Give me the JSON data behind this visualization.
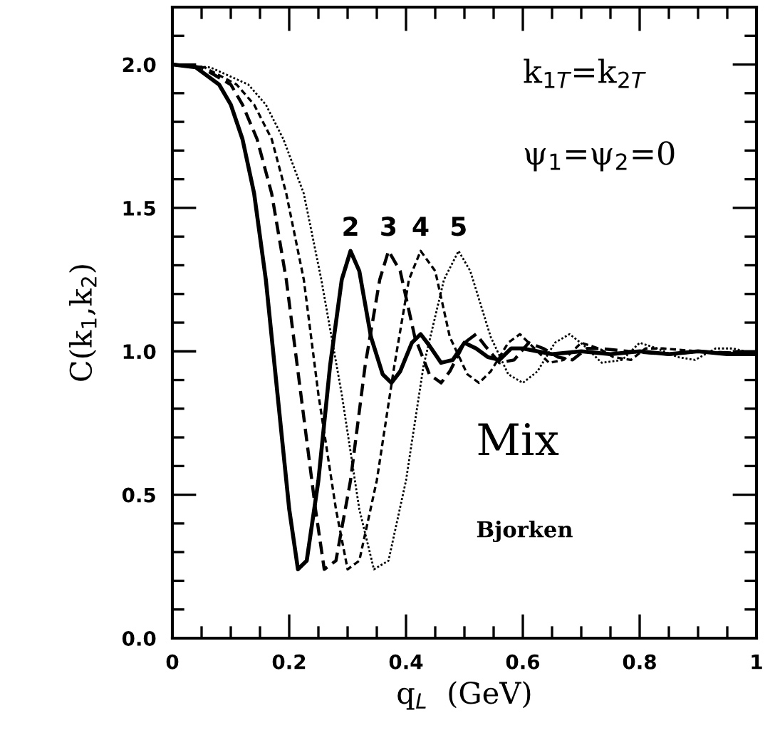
{
  "chart_data": {
    "type": "line",
    "xlabel": "q$_{L}$  (GeV)",
    "ylabel": "C(k$_{1}$,k$_{2}$)",
    "xlim": [
      0,
      1
    ],
    "ylim": [
      0,
      2.2
    ],
    "xticks": [
      0,
      0.2,
      0.4,
      0.6,
      0.8,
      1
    ],
    "yticks": [
      {
        "value": 0,
        "label": "0.0"
      },
      {
        "value": 0.5,
        "label": "0.5"
      },
      {
        "value": 1,
        "label": "1.0"
      },
      {
        "value": 1.5,
        "label": "1.5"
      },
      {
        "value": 2,
        "label": "2.0"
      }
    ],
    "grid": false,
    "legend": false,
    "series": [
      {
        "color": "#000000",
        "line_style": "solid",
        "x": [
          0,
          0.04,
          0.08,
          0.1,
          0.12,
          0.14,
          0.16,
          0.18,
          0.2,
          0.215,
          0.23,
          0.25,
          0.27,
          0.29,
          0.305,
          0.32,
          0.34,
          0.36,
          0.375,
          0.39,
          0.41,
          0.425,
          0.44,
          0.46,
          0.48,
          0.5,
          0.52,
          0.54,
          0.56,
          0.58,
          0.6,
          0.65,
          0.7,
          0.75,
          0.8,
          0.85,
          0.9,
          0.95,
          1.0
        ],
        "values": [
          2.0,
          1.99,
          1.93,
          1.86,
          1.74,
          1.55,
          1.25,
          0.85,
          0.45,
          0.24,
          0.27,
          0.55,
          0.95,
          1.25,
          1.35,
          1.28,
          1.05,
          0.92,
          0.89,
          0.93,
          1.03,
          1.06,
          1.02,
          0.96,
          0.97,
          1.03,
          1.01,
          0.98,
          0.97,
          1.01,
          1.01,
          0.99,
          1.0,
          0.99,
          1.0,
          0.99,
          1.0,
          0.99,
          0.99
        ]
      },
      {
        "color": "#000000",
        "line_style": "dashed",
        "x": [
          0,
          0.05,
          0.1,
          0.12,
          0.145,
          0.17,
          0.195,
          0.22,
          0.245,
          0.26,
          0.28,
          0.305,
          0.33,
          0.355,
          0.37,
          0.39,
          0.415,
          0.44,
          0.46,
          0.475,
          0.5,
          0.52,
          0.535,
          0.56,
          0.585,
          0.61,
          0.635,
          0.66,
          0.685,
          0.71,
          0.73,
          0.78,
          0.85,
          0.9,
          1.0
        ],
        "values": [
          2.0,
          1.99,
          1.93,
          1.86,
          1.74,
          1.55,
          1.25,
          0.85,
          0.45,
          0.24,
          0.27,
          0.55,
          0.95,
          1.25,
          1.35,
          1.28,
          1.05,
          0.92,
          0.89,
          0.93,
          1.03,
          1.06,
          1.02,
          0.96,
          0.97,
          1.03,
          1.01,
          0.98,
          0.97,
          1.01,
          1.01,
          1.0,
          0.99,
          1.0,
          0.99
        ]
      },
      {
        "color": "#000000",
        "line_style": "dashdot",
        "x": [
          0,
          0.055,
          0.11,
          0.14,
          0.17,
          0.195,
          0.225,
          0.25,
          0.28,
          0.3,
          0.32,
          0.35,
          0.38,
          0.405,
          0.425,
          0.45,
          0.475,
          0.505,
          0.525,
          0.545,
          0.575,
          0.595,
          0.615,
          0.645,
          0.67,
          0.7,
          0.73,
          0.755,
          0.785,
          0.81,
          0.84,
          0.9,
          1.0
        ],
        "values": [
          2.0,
          1.99,
          1.93,
          1.86,
          1.74,
          1.55,
          1.25,
          0.85,
          0.45,
          0.24,
          0.27,
          0.55,
          0.95,
          1.25,
          1.35,
          1.28,
          1.05,
          0.92,
          0.89,
          0.93,
          1.03,
          1.06,
          1.02,
          0.96,
          0.97,
          1.03,
          1.01,
          0.98,
          0.97,
          1.01,
          1.01,
          1.0,
          0.99
        ]
      },
      {
        "color": "#000000",
        "line_style": "dotted",
        "x": [
          0,
          0.065,
          0.13,
          0.16,
          0.19,
          0.225,
          0.255,
          0.29,
          0.32,
          0.345,
          0.37,
          0.4,
          0.43,
          0.465,
          0.49,
          0.51,
          0.545,
          0.575,
          0.6,
          0.625,
          0.655,
          0.68,
          0.705,
          0.735,
          0.77,
          0.8,
          0.83,
          0.865,
          0.895,
          0.93,
          0.96,
          1.0
        ],
        "values": [
          2.0,
          1.99,
          1.93,
          1.86,
          1.74,
          1.55,
          1.25,
          0.85,
          0.45,
          0.24,
          0.27,
          0.55,
          0.95,
          1.25,
          1.35,
          1.28,
          1.05,
          0.92,
          0.89,
          0.93,
          1.03,
          1.06,
          1.02,
          0.96,
          0.97,
          1.03,
          1.01,
          0.98,
          0.97,
          1.01,
          1.01,
          0.99
        ]
      }
    ],
    "annotations": [
      {
        "text": "2",
        "x": 0.305,
        "y": 1.35
      },
      {
        "text": "3",
        "x": 0.37,
        "y": 1.35
      },
      {
        "text": "4",
        "x": 0.425,
        "y": 1.35
      },
      {
        "text": "5",
        "x": 0.49,
        "y": 1.35
      },
      "k$_{1T}$=k$_{2T}$",
      "ψ$_{1}$=ψ$_{2}$=0",
      "Mix",
      "Bjorken"
    ]
  }
}
